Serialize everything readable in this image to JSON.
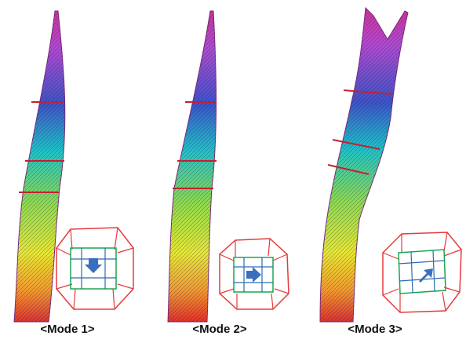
{
  "figure": {
    "modes": [
      {
        "label": "<Mode 1>",
        "plan_arrow_direction": "down",
        "tower_deformation": "left-bend"
      },
      {
        "label": "<Mode 2>",
        "plan_arrow_direction": "right",
        "tower_deformation": "lateral-bend"
      },
      {
        "label": "<Mode 3>",
        "plan_arrow_direction": "up-right",
        "tower_deformation": "torsional-bend"
      }
    ],
    "colors": {
      "frame_red": "#e8383b",
      "core_green": "#1aa550",
      "core_blue": "#2b6cb0",
      "arrow_blue": "#3a6fbe",
      "top_magenta": "#d0339a",
      "mid_cyan": "#20c3c8",
      "mid_green": "#8fdc4a",
      "low_yellow": "#e8e832",
      "base_red": "#e0302a"
    }
  }
}
